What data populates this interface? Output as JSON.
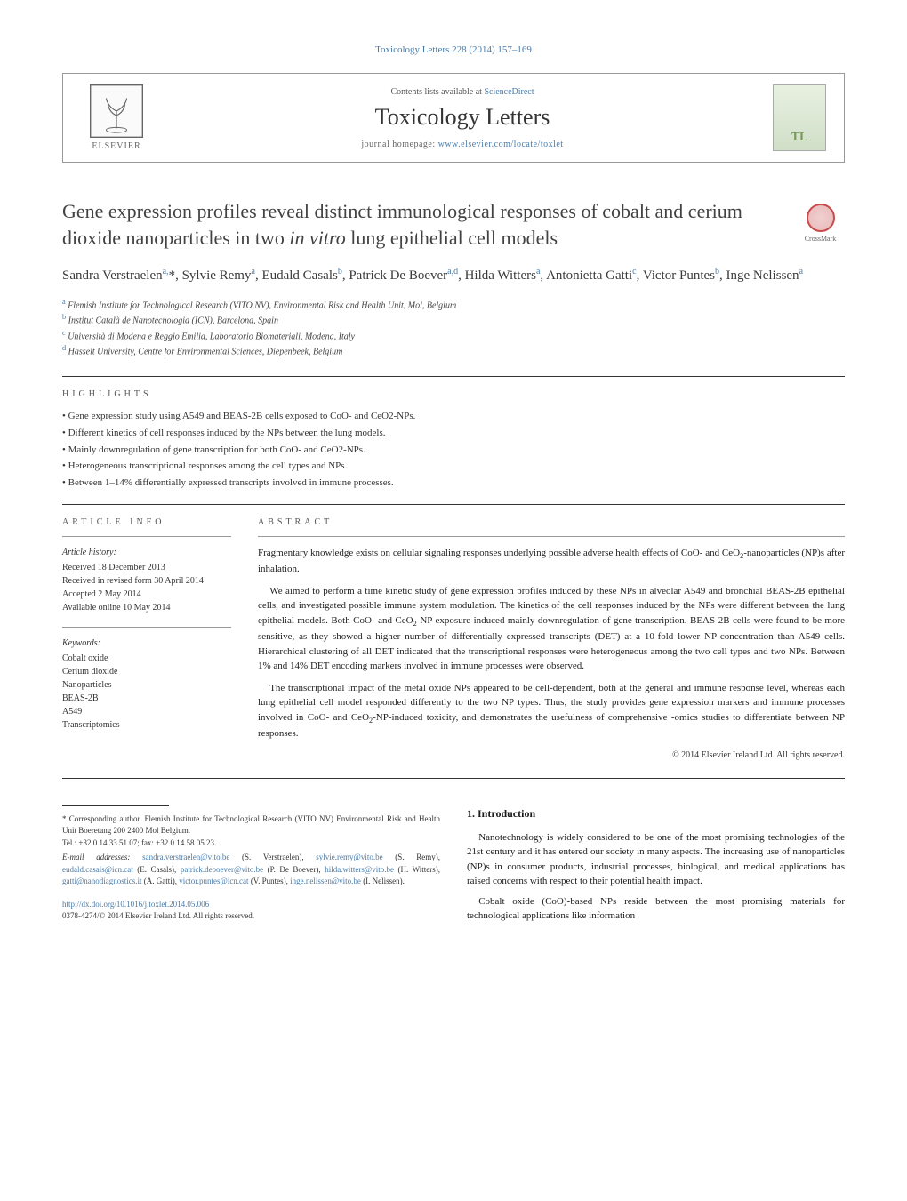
{
  "journal_ref": "Toxicology Letters 228 (2014) 157–169",
  "header": {
    "publisher": "ELSEVIER",
    "contents_prefix": "Contents lists available at ",
    "contents_link": "ScienceDirect",
    "journal_name": "Toxicology Letters",
    "homepage_prefix": "journal homepage: ",
    "homepage_link": "www.elsevier.com/locate/toxlet",
    "cover_label": "Toxicology Letters"
  },
  "crossmark": "CrossMark",
  "title_html": "Gene expression profiles reveal distinct immunological responses of cobalt and cerium dioxide nanoparticles in two <em>in vitro</em> lung epithelial cell models",
  "authors_html": "Sandra Verstraelen<sup>a,</sup>*, Sylvie Remy<sup>a</sup>, Eudald Casals<sup>b</sup>, Patrick De Boever<sup>a,d</sup>, Hilda Witters<sup>a</sup>, Antonietta Gatti<sup>c</sup>, Victor Puntes<sup>b</sup>, Inge Nelissen<sup>a</sup>",
  "affiliations": [
    {
      "sup": "a",
      "text": "Flemish Institute for Technological Research (VITO NV), Environmental Risk and Health Unit, Mol, Belgium"
    },
    {
      "sup": "b",
      "text": "Institut Català de Nanotecnologia (ICN), Barcelona, Spain"
    },
    {
      "sup": "c",
      "text": "Università di Modena e Reggio Emilia, Laboratorio Biomateriali, Modena, Italy"
    },
    {
      "sup": "d",
      "text": "Hasselt University, Centre for Environmental Sciences, Diepenbeek, Belgium"
    }
  ],
  "highlights_heading": "HIGHLIGHTS",
  "highlights": [
    "Gene expression study using A549 and BEAS-2B cells exposed to CoO- and CeO2-NPs.",
    "Different kinetics of cell responses induced by the NPs between the lung models.",
    "Mainly downregulation of gene transcription for both CoO- and CeO2-NPs.",
    "Heterogeneous transcriptional responses among the cell types and NPs.",
    "Between 1–14% differentially expressed transcripts involved in immune processes."
  ],
  "article_info_heading": "ARTICLE INFO",
  "abstract_heading": "ABSTRACT",
  "article_history": {
    "label": "Article history:",
    "items": [
      "Received 18 December 2013",
      "Received in revised form 30 April 2014",
      "Accepted 2 May 2014",
      "Available online 10 May 2014"
    ]
  },
  "keywords": {
    "label": "Keywords:",
    "items": [
      "Cobalt oxide",
      "Cerium dioxide",
      "Nanoparticles",
      "BEAS-2B",
      "A549",
      "Transcriptomics"
    ]
  },
  "abstract_paragraphs": [
    "Fragmentary knowledge exists on cellular signaling responses underlying possible adverse health effects of CoO- and CeO<sub>2</sub>-nanoparticles (NP)s after inhalation.",
    "We aimed to perform a time kinetic study of gene expression profiles induced by these NPs in alveolar A549 and bronchial BEAS-2B epithelial cells, and investigated possible immune system modulation. The kinetics of the cell responses induced by the NPs were different between the lung epithelial models. Both CoO- and CeO<sub>2</sub>-NP exposure induced mainly downregulation of gene transcription. BEAS-2B cells were found to be more sensitive, as they showed a higher number of differentially expressed transcripts (DET) at a 10-fold lower NP-concentration than A549 cells. Hierarchical clustering of all DET indicated that the transcriptional responses were heterogeneous among the two cell types and two NPs. Between 1% and 14% DET encoding markers involved in immune processes were observed.",
    "The transcriptional impact of the metal oxide NPs appeared to be cell-dependent, both at the general and immune response level, whereas each lung epithelial cell model responded differently to the two NP types. Thus, the study provides gene expression markers and immune processes involved in CoO- and CeO<sub>2</sub>-NP-induced toxicity, and demonstrates the usefulness of comprehensive -omics studies to differentiate between NP responses."
  ],
  "copyright": "© 2014 Elsevier Ireland Ltd. All rights reserved.",
  "intro_heading": "1. Introduction",
  "intro_paragraphs": [
    "Nanotechnology is widely considered to be one of the most promising technologies of the 21st century and it has entered our society in many aspects. The increasing use of nanoparticles (NP)s in consumer products, industrial processes, biological, and medical applications has raised concerns with respect to their potential health impact.",
    "Cobalt oxide (CoO)-based NPs reside between the most promising materials for technological applications like information"
  ],
  "corresponding": {
    "star": "*",
    "label": "Corresponding author. Flemish Institute for Technological Research (VITO NV) Environmental Risk and Health Unit Boeretang 200 2400 Mol Belgium.",
    "tel": "Tel.: +32 0 14 33 51 07; fax: +32 0 14 58 05 23.",
    "email_label": "E-mail addresses:",
    "emails": [
      {
        "addr": "sandra.verstraelen@vito.be",
        "who": "(S. Verstraelen)"
      },
      {
        "addr": "sylvie.remy@vito.be",
        "who": "(S. Remy)"
      },
      {
        "addr": "eudald.casals@icn.cat",
        "who": "(E. Casals)"
      },
      {
        "addr": "patrick.deboever@vito.be",
        "who": "(P. De Boever)"
      },
      {
        "addr": "hilda.witters@vito.be",
        "who": "(H. Witters)"
      },
      {
        "addr": "gatti@nanodiagnostics.it",
        "who": "(A. Gatti)"
      },
      {
        "addr": "victor.puntes@icn.cat",
        "who": "(V. Puntes)"
      },
      {
        "addr": "inge.nelissen@vito.be",
        "who": "(I. Nelissen)"
      }
    ]
  },
  "doi": "http://dx.doi.org/10.1016/j.toxlet.2014.05.006",
  "issn_line": "0378-4274/© 2014 Elsevier Ireland Ltd. All rights reserved.",
  "colors": {
    "link": "#4a7ba8",
    "text": "#1a1a1a",
    "heading": "#424242",
    "rule": "#333333"
  }
}
